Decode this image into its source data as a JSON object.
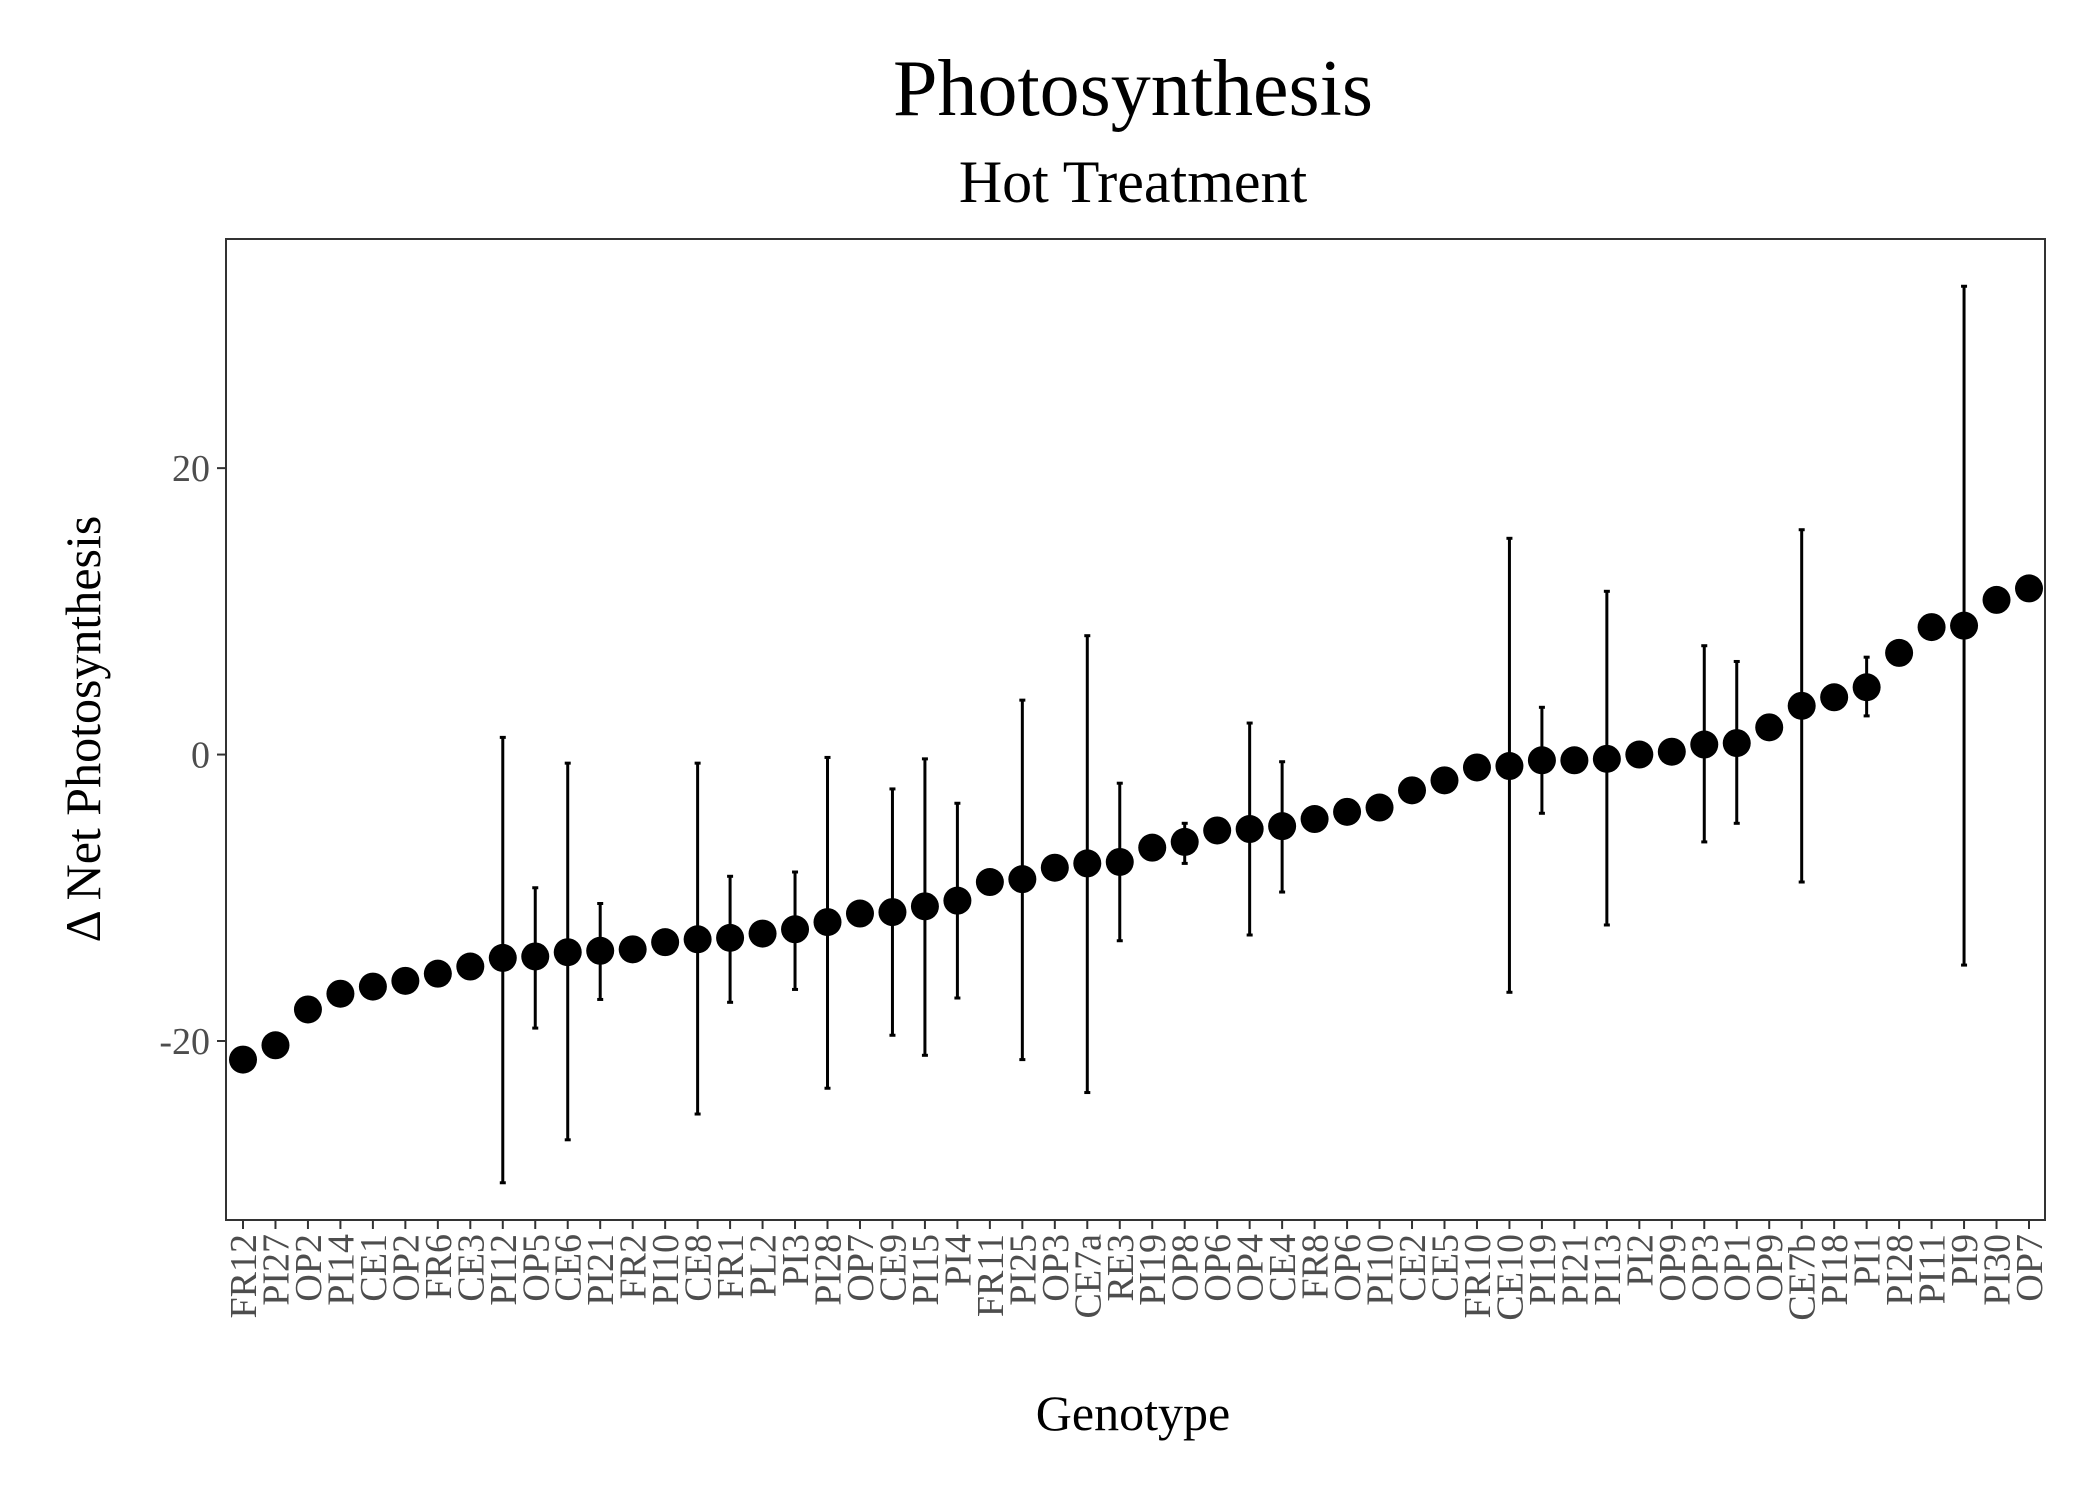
{
  "chart_data": {
    "type": "scatter",
    "title": "Photosynthesis",
    "subtitle": "Hot Treatment",
    "xlabel": "Genotype",
    "ylabel": "Δ Net Photosynthesis",
    "ylim": [
      -32.5,
      36
    ],
    "yticks": [
      -20,
      0,
      20
    ],
    "grid": false,
    "categories": [
      "FR12",
      "PI27",
      "OP2",
      "PI14",
      "CE1",
      "OP2",
      "FR6",
      "CE3",
      "PI12",
      "OP5",
      "CE6",
      "PI21",
      "FR2",
      "PI10",
      "CE8",
      "FR1",
      "PL2",
      "PI3",
      "PI28",
      "OP7",
      "CE9",
      "PI15",
      "PI4",
      "FR11",
      "PI25",
      "OP3",
      "CE7a",
      "RE3",
      "PI19",
      "OP8",
      "OP6",
      "OP4",
      "CE4",
      "FR8",
      "OP6",
      "PI10",
      "CE2",
      "CE5",
      "FR10",
      "CE10",
      "PI19",
      "PI21",
      "PI13",
      "PI2",
      "OP9",
      "OP3",
      "OP1",
      "OP9",
      "CE7b",
      "PI18",
      "PI1",
      "PI28",
      "PI11",
      "PI9",
      "PI30",
      "OP7"
    ],
    "values": [
      -21.3,
      -20.3,
      -17.8,
      -16.7,
      -16.2,
      -15.8,
      -15.3,
      -14.8,
      -14.2,
      -14.1,
      -13.8,
      -13.7,
      -13.6,
      -13.1,
      -12.9,
      -12.8,
      -12.5,
      -12.2,
      -11.7,
      -11.1,
      -11.0,
      -10.6,
      -10.2,
      -8.9,
      -8.7,
      -7.9,
      -7.6,
      -7.5,
      -6.5,
      -6.1,
      -5.3,
      -5.2,
      -5.0,
      -4.5,
      -4.0,
      -3.7,
      -2.5,
      -1.8,
      -0.9,
      -0.8,
      -0.4,
      -0.4,
      -0.3,
      -0.0,
      0.2,
      0.7,
      0.8,
      1.9,
      3.4,
      4.0,
      4.7,
      7.1,
      8.9,
      9.0,
      10.8,
      11.6
    ],
    "error_low": [
      null,
      null,
      null,
      null,
      null,
      null,
      null,
      null,
      -29.9,
      -19.1,
      -26.9,
      -17.1,
      null,
      null,
      -25.1,
      -17.3,
      null,
      -16.4,
      -23.3,
      null,
      -19.6,
      -21.0,
      -17.0,
      null,
      -21.3,
      null,
      -23.6,
      -13.0,
      null,
      -7.6,
      null,
      -12.6,
      -9.6,
      null,
      null,
      null,
      null,
      null,
      null,
      -16.6,
      -4.1,
      null,
      -11.9,
      null,
      null,
      -6.1,
      -4.8,
      null,
      -8.9,
      null,
      2.7,
      null,
      null,
      -14.7,
      null,
      null
    ],
    "error_high": [
      null,
      null,
      null,
      null,
      null,
      null,
      null,
      null,
      1.2,
      -9.3,
      -0.6,
      -10.4,
      null,
      null,
      -0.6,
      -8.5,
      null,
      -8.2,
      -0.2,
      null,
      -2.4,
      -0.3,
      -3.4,
      null,
      3.8,
      null,
      8.3,
      -2.0,
      null,
      -4.8,
      null,
      2.2,
      -0.5,
      null,
      null,
      null,
      null,
      null,
      null,
      15.1,
      3.3,
      null,
      11.4,
      null,
      null,
      7.6,
      6.5,
      null,
      15.7,
      null,
      6.8,
      null,
      null,
      32.7,
      null,
      null
    ]
  }
}
